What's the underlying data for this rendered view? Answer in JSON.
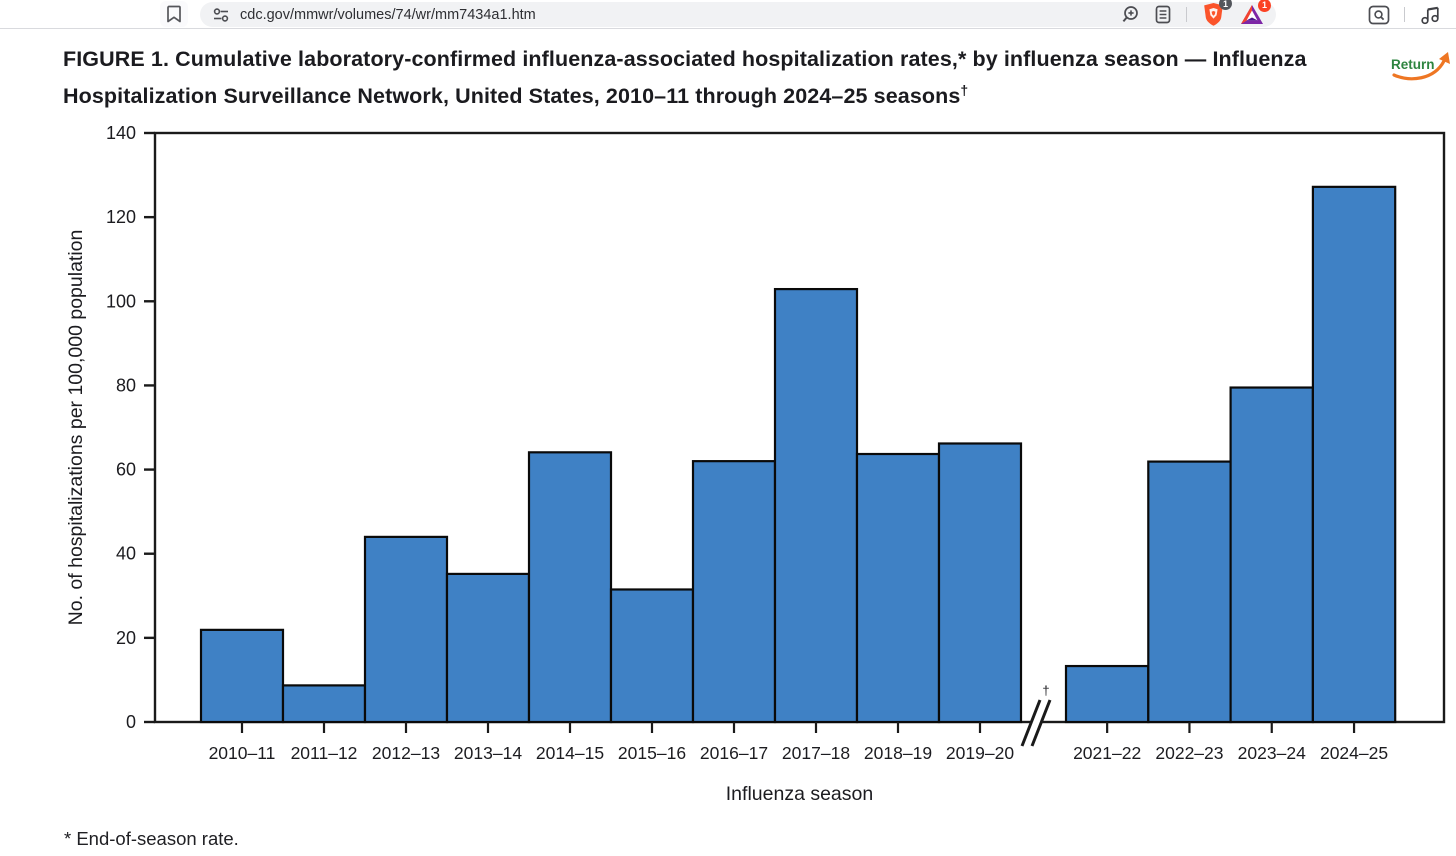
{
  "browser": {
    "url": "cdc.gov/mmwr/volumes/74/wr/mm7434a1.htm",
    "icons": {
      "bookmark": "bookmark-icon",
      "site_settings": "tune-icon",
      "zoom": "zoom-in-icon",
      "reader": "reader-mode-icon",
      "shield": "brave-shield-icon",
      "rewards": "brave-rewards-triangle-icon",
      "find": "find-in-page-icon",
      "media": "music-note-icon"
    },
    "shield_badge_count": "1",
    "rewards_badge_count": "1"
  },
  "main": {
    "figure_title": "FIGURE 1. Cumulative laboratory-confirmed influenza-associated hospitalization rates,* by influenza season — Influenza Hospitalization Surveillance Network, United States, 2010–11 through 2024–25 seasons",
    "figure_title_dagger": "†",
    "return_label": "Return",
    "footnote": "* End-of-season rate."
  },
  "chart_data": {
    "type": "bar",
    "title": "",
    "xlabel": "Influenza season",
    "ylabel": "No. of hospitalizations per 100,000 population",
    "ylim": [
      0,
      140
    ],
    "ytick_step": 20,
    "grid": false,
    "legend": "none",
    "categories": [
      "2010–11",
      "2011–12",
      "2012–13",
      "2013–14",
      "2014–15",
      "2015–16",
      "2016–17",
      "2017–18",
      "2018–19",
      "2019–20",
      "2021–22",
      "2022–23",
      "2023–24",
      "2024–25"
    ],
    "values": [
      21.9,
      8.7,
      44.0,
      35.2,
      64.1,
      31.5,
      62.0,
      102.9,
      63.7,
      66.2,
      13.3,
      61.9,
      79.5,
      127.2
    ],
    "axis_break": {
      "between": [
        "2019–20",
        "2021–22"
      ],
      "symbol": "†"
    },
    "bar_color": "#3F81C5",
    "bar_edge_color": "#0a0a0a",
    "axis_color": "#1a1a1a"
  },
  "colors": {
    "return_green": "#2E8540",
    "arrow_orange": "#EE7623",
    "brave_orange": "#FB542B",
    "badge_red": "#FB4224",
    "toolbar_pill": "#F1F2F4"
  }
}
